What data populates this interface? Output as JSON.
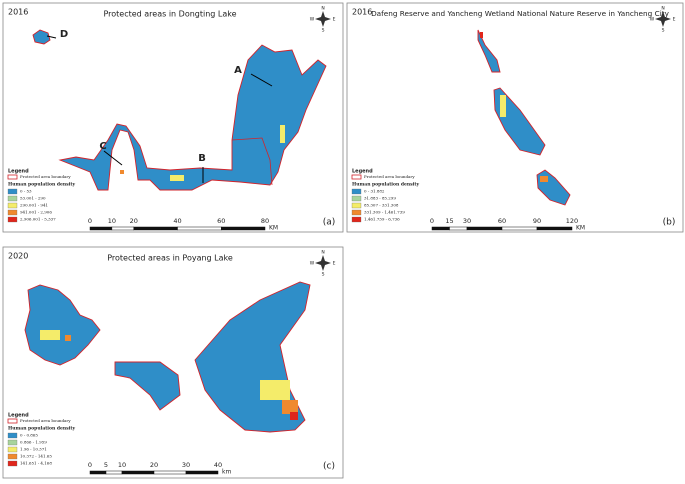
{
  "panels": [
    {
      "year": "2016",
      "title": "Protected areas in Dongting Lake",
      "labels": [
        "A",
        "B",
        "C",
        "D"
      ],
      "compass": [
        "N",
        "E",
        "S",
        "W"
      ],
      "legend": {
        "title": "Legend",
        "boundary": "Protected area boundary",
        "density_title": "Human population density",
        "items": [
          "0 - 53",
          "53.001 - 290",
          "290.001 - 941",
          "941.001 - 2,906",
          "2,906.001 - 5,337"
        ]
      },
      "scale": {
        "ticks": [
          "0",
          "10",
          "20",
          "40",
          "60",
          "80"
        ],
        "unit": "KM"
      },
      "tag": "(a)"
    },
    {
      "year": "2016",
      "title": "Dafeng Reserve and Yancheng Wetland National Nature Reserve in Yancheng City",
      "labels": [],
      "compass": [
        "N",
        "E",
        "S",
        "W"
      ],
      "legend": {
        "title": "Legend",
        "boundary": "Protected area boundary",
        "density_title": "Human population density",
        "items": [
          "0 - 31.882",
          "31.883 - 85.299",
          "85.307 - 331.308",
          "331.309 - 1,461.739",
          "1,461.739 - 6,736"
        ]
      },
      "scale": {
        "ticks": [
          "0",
          "15",
          "30",
          "60",
          "90",
          "120"
        ],
        "unit": "KM"
      },
      "tag": "(b)"
    },
    {
      "year": "2020",
      "title": "Protected areas in Poyang Lake",
      "labels": [],
      "compass": [
        "N",
        "E",
        "S",
        "W"
      ],
      "legend": {
        "title": "Legend",
        "boundary": "Protected area boundary",
        "density_title": "Human population density",
        "items": [
          "0 - 0.865",
          "0.866 - 1.959",
          "1.96 - 10.371",
          "10.372 - 141.65",
          "141.651 - 4,168"
        ]
      },
      "scale": {
        "ticks": [
          "0",
          "5",
          "10",
          "20",
          "30",
          "40"
        ],
        "unit": "km"
      },
      "tag": "(c)"
    }
  ]
}
